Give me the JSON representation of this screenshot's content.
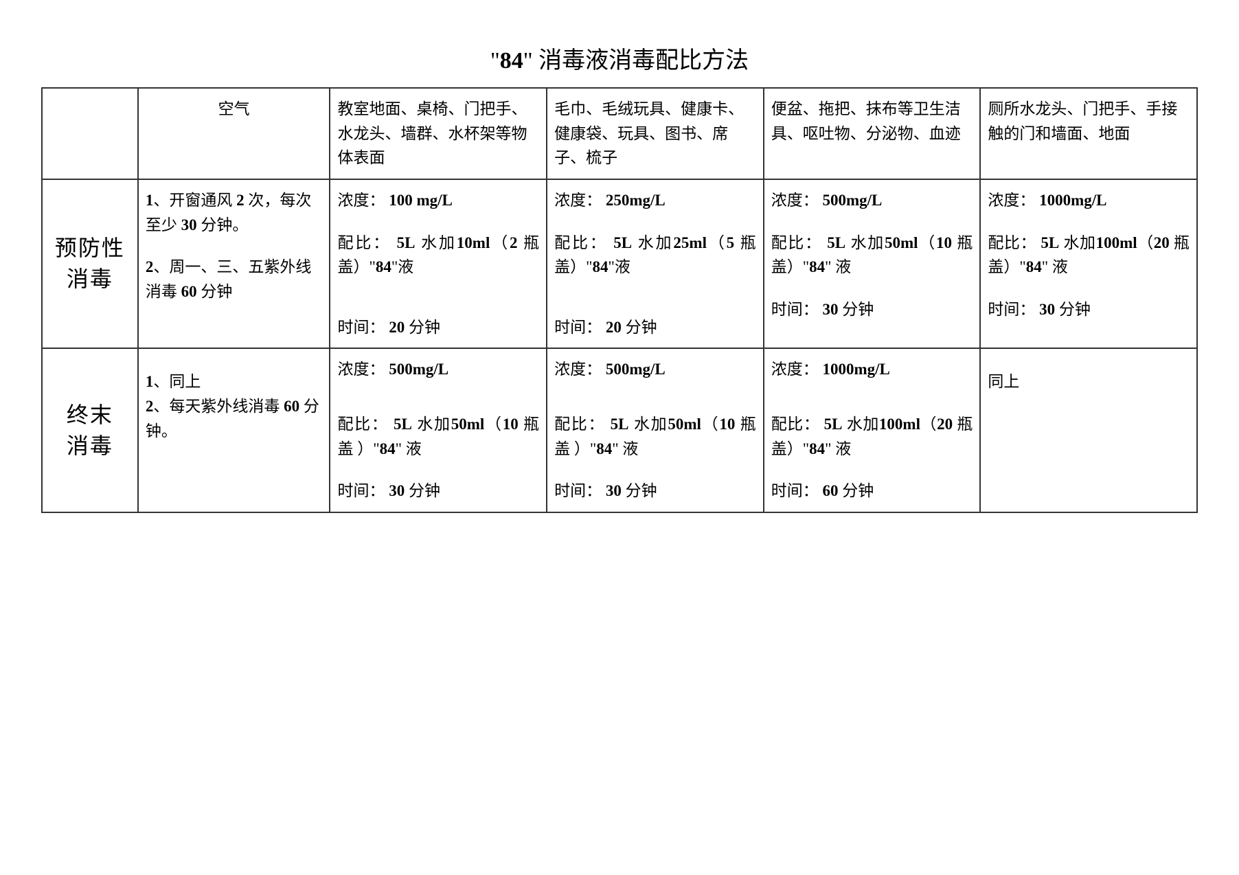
{
  "title": {
    "pre": "\"",
    "bold": "84",
    "post": "\" 消毒液消毒配比方法"
  },
  "headers": {
    "air": "空气",
    "col1": "教室地面、桌椅、门把手、水龙头、墙群、水杯架等物体表面",
    "col2": "毛巾、毛绒玩具、健康卡、健康袋、玩具、图书、席子、梳子",
    "col3": "便盆、拖把、抹布等卫生洁具、呕吐物、分泌物、血迹",
    "col4": "厕所水龙头、门把手、手接触的门和墙面、地面"
  },
  "rows": {
    "preventive": {
      "label": "预防性\n消毒",
      "air": {
        "l1a": "1",
        "l1b": "、开窗通风 ",
        "l1c": "2",
        "l1d": " 次，每次至少 ",
        "l1e": "30",
        "l1f": " 分钟。",
        "l2a": "2",
        "l2b": "、周一、三、五紫外线消毒 ",
        "l2c": "60",
        "l2d": " 分钟"
      },
      "c1": {
        "conc_label": "浓度：",
        "conc_val": "100 mg/L",
        "ratio_label": "配比：",
        "ratio_v1": "5L",
        "ratio_t1": " 水加",
        "ratio_v2": "10ml",
        "ratio_t2": "（",
        "ratio_v3": "2",
        "ratio_t3": " 瓶盖）\"",
        "ratio_v4": "84",
        "ratio_t4": "\"液",
        "time_label": "时间：",
        "time_val": "20",
        "time_unit": " 分钟"
      },
      "c2": {
        "conc_label": "浓度：",
        "conc_val": "250mg/L",
        "ratio_label": "配比：",
        "ratio_v1": "5L",
        "ratio_t1": " 水加",
        "ratio_v2": "25ml",
        "ratio_t2": "（",
        "ratio_v3": "5",
        "ratio_t3": " 瓶盖）\"",
        "ratio_v4": "84",
        "ratio_t4": "\"液",
        "time_label": "时间：",
        "time_val": "20",
        "time_unit": " 分钟"
      },
      "c3": {
        "conc_label": "浓度：",
        "conc_val": "500mg/L",
        "ratio_label": "配比：",
        "ratio_v1": "5L",
        "ratio_t1": " 水加",
        "ratio_v2": "50ml",
        "ratio_t2": "（",
        "ratio_v3": "10",
        "ratio_t3": " 瓶盖）\"",
        "ratio_v4": "84",
        "ratio_t4": "\" 液",
        "time_label": "时间：",
        "time_val": "30",
        "time_unit": " 分钟"
      },
      "c4": {
        "conc_label": "浓度：",
        "conc_val": "1000mg/L",
        "ratio_label": "配比：",
        "ratio_v1": "5L",
        "ratio_t1": " 水加",
        "ratio_v2": "100ml",
        "ratio_t2": "（",
        "ratio_v3": "20",
        "ratio_t3": " 瓶盖）\"",
        "ratio_v4": "84",
        "ratio_t4": "\" 液",
        "time_label": "时间：",
        "time_val": "30",
        "time_unit": " 分钟"
      }
    },
    "terminal": {
      "label": "终末\n消毒",
      "air": {
        "l1a": "1",
        "l1b": "、同上",
        "l2a": "2",
        "l2b": "、每天紫外线消毒 ",
        "l2c": "60",
        "l2d": " 分钟。"
      },
      "c1": {
        "conc_label": "浓度：",
        "conc_val": "500mg/L",
        "ratio_label": "配比：",
        "ratio_v1": "5L",
        "ratio_t1": " 水加",
        "ratio_v2": "50ml",
        "ratio_t2": "（",
        "ratio_v3": "10",
        "ratio_t3": " 瓶盖 ）\"",
        "ratio_v4": "84",
        "ratio_t4": "\" 液",
        "time_label": "时间：",
        "time_val": "30",
        "time_unit": " 分钟"
      },
      "c2": {
        "conc_label": "浓度：",
        "conc_val": "500mg/L",
        "ratio_label": "配比：",
        "ratio_v1": "5L",
        "ratio_t1": " 水加",
        "ratio_v2": "50ml",
        "ratio_t2": "（",
        "ratio_v3": "10",
        "ratio_t3": " 瓶盖 ）\"",
        "ratio_v4": "84",
        "ratio_t4": "\" 液",
        "time_label": "时间：",
        "time_val": "30",
        "time_unit": " 分钟"
      },
      "c3": {
        "conc_label": "浓度：",
        "conc_val": "1000mg/L",
        "ratio_label": "配比：",
        "ratio_v1": "5L",
        "ratio_t1": " 水加",
        "ratio_v2": "100ml",
        "ratio_t2": "（",
        "ratio_v3": "20",
        "ratio_t3": " 瓶盖）\"",
        "ratio_v4": "84",
        "ratio_t4": "\" 液",
        "time_label": "时间：",
        "time_val": "60",
        "time_unit": " 分钟"
      },
      "c4": {
        "same": "同上"
      }
    }
  },
  "style": {
    "border_color": "#333333",
    "bg": "#ffffff",
    "text": "#000000",
    "title_fontsize": 34,
    "cell_fontsize": 23,
    "rowlabel_fontsize": 32
  }
}
